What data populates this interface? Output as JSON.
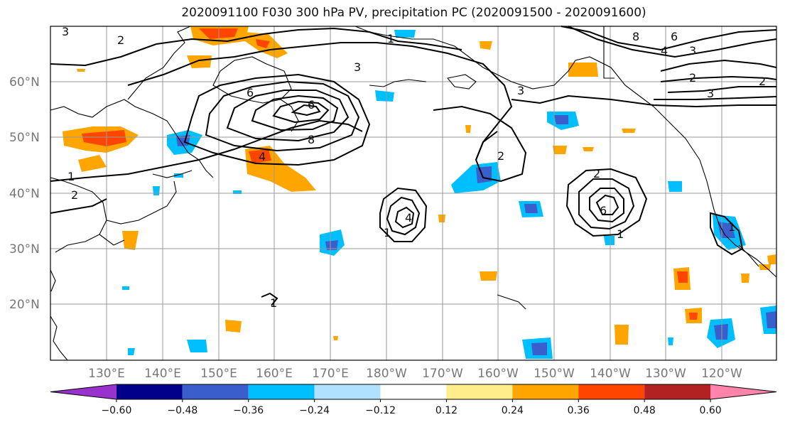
{
  "title": "2020091100 F030 300 hPa PV, precipitation PC (2020091500 - 2020091600)",
  "lat_labels": [
    "60°N",
    "50°N",
    "40°N",
    "30°N",
    "20°N"
  ],
  "lon_labels": [
    "130°E",
    "140°E",
    "150°E",
    "160°E",
    "170°E",
    "180°W",
    "170°W",
    "160°W",
    "150°W",
    "140°W",
    "130°W",
    "120°W"
  ],
  "colorbar": {
    "colors": [
      "#9932cc",
      "#00008b",
      "#3a5fcd",
      "#00bfff",
      "#b0e2ff",
      "#ffffff",
      "#ffec8b",
      "#ffa500",
      "#ff4500",
      "#b22222",
      "#ff83aa"
    ],
    "tick_labels": [
      "-0.60",
      "-0.48",
      "-0.36",
      "-0.24",
      "-0.12",
      "0.12",
      "0.24",
      "0.36",
      "0.48",
      "0.60"
    ]
  },
  "contour_labels": [
    "1",
    "2",
    "3",
    "4",
    "6",
    "8"
  ]
}
